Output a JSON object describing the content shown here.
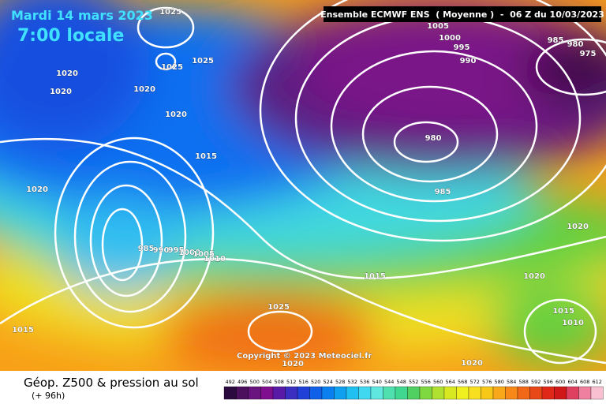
{
  "header": {
    "date": "Mardi 14 mars 2023",
    "time": "7:00 locale",
    "run": "Ensemble ECMWF ENS  ( Moyenne )  -  06 Z du 10/03/2023"
  },
  "copyright": "Copyright © 2023 Meteociel.fr",
  "footer": {
    "title": "Géop. Z500 & pression au sol",
    "lead": "(+ 96h)"
  },
  "isobar_labels": [
    1025,
    1025,
    1025,
    1020,
    1020,
    1020,
    1020,
    1015,
    1020,
    1005,
    1000,
    995,
    990,
    985,
    980,
    975,
    980,
    985,
    985,
    990,
    995,
    1000,
    1005,
    1010,
    1015,
    1020,
    1020,
    1025,
    1015,
    1010,
    1015,
    1020,
    1020
  ],
  "colorbar": {
    "values": [
      492,
      496,
      500,
      504,
      508,
      512,
      516,
      520,
      524,
      528,
      532,
      536,
      540,
      544,
      548,
      552,
      556,
      560,
      564,
      568,
      572,
      576,
      580,
      584,
      588,
      592,
      596,
      600,
      604,
      608,
      612
    ],
    "colors": [
      "#2b0b3f",
      "#4b0f5e",
      "#6a1480",
      "#800f90",
      "#5a1aa8",
      "#3a2fc0",
      "#2040d8",
      "#1060e8",
      "#0a80f0",
      "#10a0f0",
      "#20c0f0",
      "#40d8f0",
      "#60e8e0",
      "#50e0b0",
      "#40d890",
      "#50d060",
      "#80d840",
      "#b0e030",
      "#d8e820",
      "#f0f020",
      "#f8e020",
      "#f8c818",
      "#f8a818",
      "#f88818",
      "#f06818",
      "#e84818",
      "#e02818",
      "#d01818",
      "#e04060",
      "#f080a0",
      "#f8c0d0"
    ]
  }
}
